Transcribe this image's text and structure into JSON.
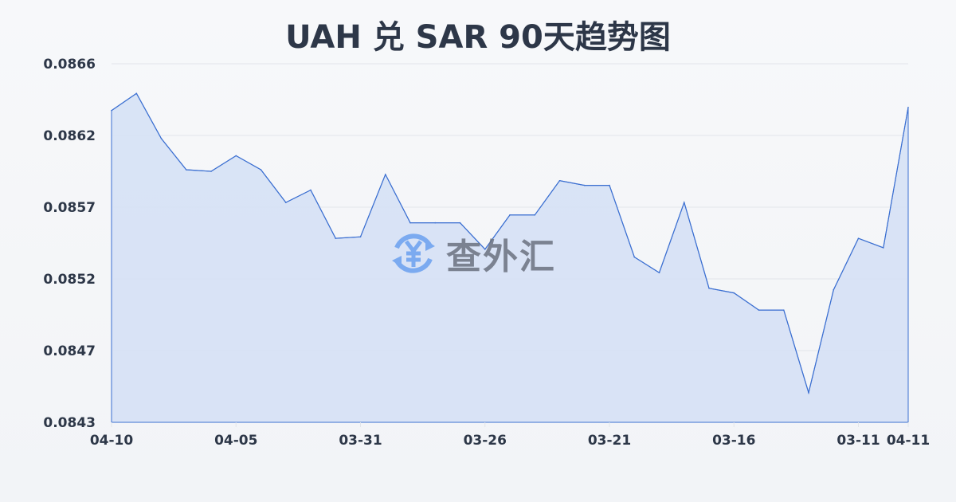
{
  "title": "UAH 兑 SAR 90天趋势图",
  "watermark": {
    "text": "查外汇",
    "icon": "yen-exchange-icon",
    "icon_color": "#7baaf0"
  },
  "colors": {
    "line": "#3b6fd1",
    "fill": "#d6e1f5",
    "grid": "#e2e5ea",
    "text": "#2d3748"
  },
  "chart_data": {
    "type": "area",
    "title": "UAH 兑 SAR 90天趋势图",
    "xlabel": "",
    "ylabel": "",
    "x_tick_labels": [
      {
        "index": 0,
        "label": "04-10"
      },
      {
        "index": 5,
        "label": "04-05"
      },
      {
        "index": 10,
        "label": "03-31"
      },
      {
        "index": 15,
        "label": "03-26"
      },
      {
        "index": 20,
        "label": "03-21"
      },
      {
        "index": 25,
        "label": "03-16"
      },
      {
        "index": 30,
        "label": "03-11"
      },
      {
        "index": 32,
        "label": "04-11"
      }
    ],
    "y_tick_labels": [
      "0.0866",
      "0.0862",
      "0.0857",
      "0.0852",
      "0.0847",
      "0.0843"
    ],
    "ylim": [
      0.0843,
      0.0866
    ],
    "grid": true,
    "values": [
      0.0863,
      0.08641,
      0.08612,
      0.08592,
      0.08591,
      0.08601,
      0.08592,
      0.08571,
      0.08579,
      0.08548,
      0.08549,
      0.08589,
      0.08558,
      0.08558,
      0.08558,
      0.08541,
      0.08563,
      0.08563,
      0.08585,
      0.08582,
      0.08582,
      0.08536,
      0.08526,
      0.08571,
      0.08516,
      0.08513,
      0.08502,
      0.08502,
      0.08449,
      0.08515,
      0.08548,
      0.08542,
      0.08632
    ]
  }
}
